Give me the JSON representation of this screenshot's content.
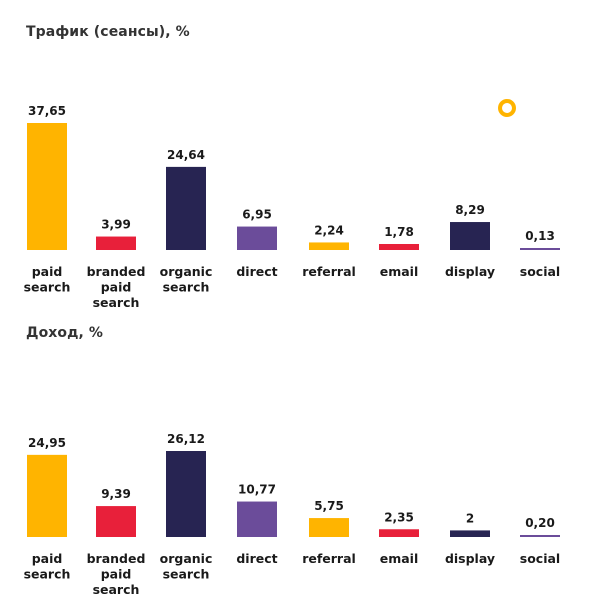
{
  "chart_data": [
    {
      "type": "bar",
      "title": "Трафик (сеансы), %",
      "categories": [
        [
          "paid",
          "search"
        ],
        [
          "branded",
          "paid",
          "search"
        ],
        [
          "organic",
          "search"
        ],
        [
          "direct"
        ],
        [
          "referral"
        ],
        [
          "email"
        ],
        [
          "display"
        ],
        [
          "social"
        ]
      ],
      "values": [
        37.65,
        3.99,
        24.64,
        6.95,
        2.24,
        1.78,
        8.29,
        0.13
      ],
      "value_labels": [
        "37,65",
        "3,99",
        "24,64",
        "6,95",
        "2,24",
        "1,78",
        "8,29",
        "0,13"
      ],
      "colors": [
        "#FFB400",
        "#E8203A",
        "#272452",
        "#6B4C9A",
        "#FFB400",
        "#E8203A",
        "#272452",
        "#6B4C9A"
      ],
      "ylim": [
        0,
        37.65
      ],
      "xlabel": "",
      "ylabel": ""
    },
    {
      "type": "bar",
      "title": "Доход, %",
      "categories": [
        [
          "paid",
          "search"
        ],
        [
          "branded",
          "paid",
          "search"
        ],
        [
          "organic",
          "search"
        ],
        [
          "direct"
        ],
        [
          "referral"
        ],
        [
          "email"
        ],
        [
          "display"
        ],
        [
          "social"
        ]
      ],
      "values": [
        24.95,
        9.39,
        26.12,
        10.77,
        5.75,
        2.35,
        2.0,
        0.2
      ],
      "value_labels": [
        "24,95",
        "9,39",
        "26,12",
        "10,77",
        "5,75",
        "2,35",
        "2",
        "0,20"
      ],
      "colors": [
        "#FFB400",
        "#E8203A",
        "#272452",
        "#6B4C9A",
        "#FFB400",
        "#E8203A",
        "#272452",
        "#6B4C9A"
      ],
      "ylim": [
        0,
        26.12
      ],
      "xlabel": "",
      "ylabel": ""
    }
  ],
  "decoration": {
    "ring_color": "#FFB400"
  }
}
